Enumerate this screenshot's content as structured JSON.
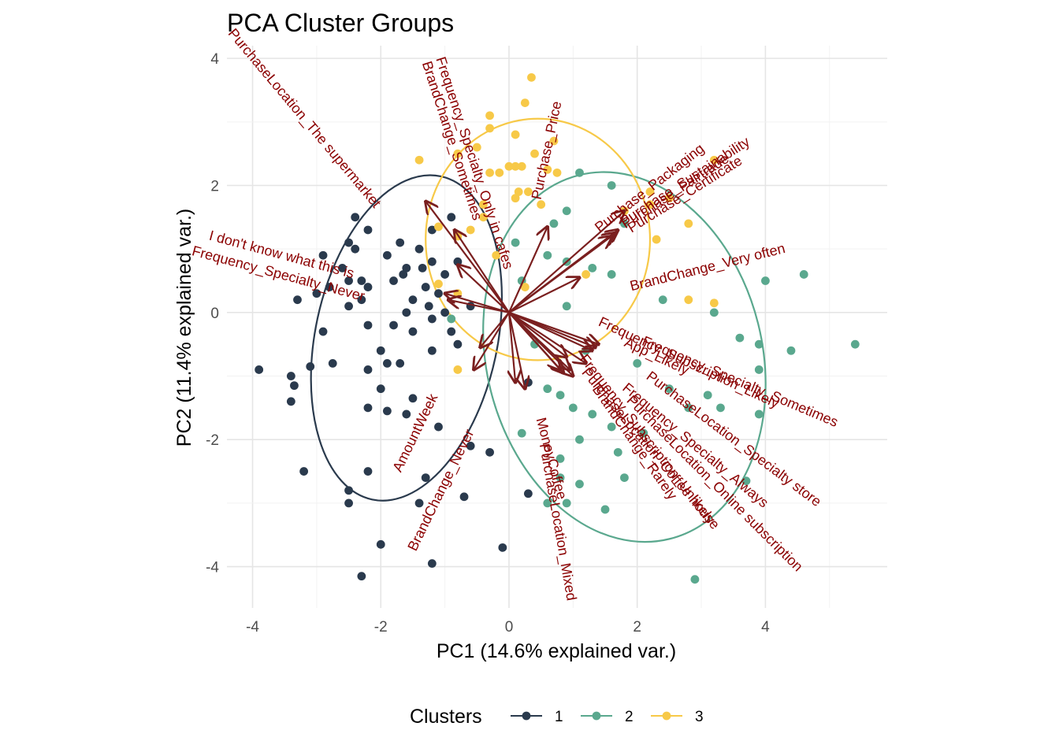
{
  "chart_data": {
    "type": "scatter",
    "title": "PCA Cluster Groups",
    "xlabel": "PC1 (14.6% explained var.)",
    "ylabel": "PC2 (11.4% explained var.)",
    "xlim": [
      -4.4,
      5.9
    ],
    "ylim": [
      -4.65,
      4.2
    ],
    "x_ticks": [
      -4,
      -2,
      0,
      2,
      4
    ],
    "y_ticks": [
      -4,
      -2,
      0,
      2,
      4
    ],
    "x_tick_labels": [
      "-4",
      "-2",
      "0",
      "2",
      "4"
    ],
    "y_tick_labels": [
      "-4",
      "-2",
      "0",
      "2",
      "4"
    ],
    "grid": true,
    "legend": {
      "title": "Clusters",
      "position": "bottom",
      "entries": [
        {
          "label": "1",
          "color": "#2a3a4d"
        },
        {
          "label": "2",
          "color": "#5aa88e"
        },
        {
          "label": "3",
          "color": "#f7c948"
        }
      ]
    },
    "series": [
      {
        "name": "1",
        "color": "#2a3a4d",
        "ellipse": {
          "center": [
            -1.6,
            -0.4
          ],
          "rx": 1.42,
          "ry": 2.6,
          "angle": 12
        },
        "points": [
          [
            -2.4,
            1.5
          ],
          [
            -2.2,
            1.3
          ],
          [
            -2.5,
            1.1
          ],
          [
            -2.4,
            1.0
          ],
          [
            -1.7,
            1.1
          ],
          [
            -1.9,
            0.9
          ],
          [
            -1.4,
            1.0
          ],
          [
            -2.9,
            0.9
          ],
          [
            -2.6,
            0.7
          ],
          [
            -2.8,
            0.4
          ],
          [
            -2.5,
            0.5
          ],
          [
            -2.3,
            0.5
          ],
          [
            -2.2,
            0.4
          ],
          [
            -1.8,
            0.5
          ],
          [
            -1.65,
            0.6
          ],
          [
            -1.6,
            0.7
          ],
          [
            -1.35,
            0.7
          ],
          [
            -1.2,
            0.8
          ],
          [
            -1.0,
            0.6
          ],
          [
            -1.1,
            0.3
          ],
          [
            -1.3,
            0.4
          ],
          [
            -3.3,
            0.2
          ],
          [
            -3.0,
            0.3
          ],
          [
            -2.5,
            0.1
          ],
          [
            -2.3,
            0.2
          ],
          [
            -2.2,
            -0.2
          ],
          [
            -1.8,
            -0.2
          ],
          [
            -1.5,
            0.2
          ],
          [
            -1.6,
            0.0
          ],
          [
            -1.25,
            0.1
          ],
          [
            -1.2,
            -0.1
          ],
          [
            -1.0,
            0.0
          ],
          [
            -2.9,
            -0.3
          ],
          [
            -2.0,
            -0.6
          ],
          [
            -1.9,
            -0.8
          ],
          [
            -1.7,
            -0.8
          ],
          [
            -1.2,
            -0.6
          ],
          [
            -0.8,
            -0.5
          ],
          [
            -3.9,
            -0.9
          ],
          [
            -3.4,
            -1.0
          ],
          [
            -3.35,
            -1.15
          ],
          [
            -3.1,
            -0.85
          ],
          [
            -2.75,
            -0.8
          ],
          [
            -2.2,
            -0.9
          ],
          [
            -2.0,
            -1.2
          ],
          [
            -1.6,
            -1.6
          ],
          [
            -1.5,
            -1.35
          ],
          [
            -3.4,
            -1.4
          ],
          [
            -2.2,
            -1.5
          ],
          [
            -1.9,
            -1.55
          ],
          [
            -1.1,
            -1.8
          ],
          [
            -0.6,
            -2.1
          ],
          [
            -0.3,
            -2.2
          ],
          [
            -3.2,
            -2.5
          ],
          [
            -2.2,
            -2.5
          ],
          [
            -1.3,
            -2.6
          ],
          [
            -2.5,
            -2.8
          ],
          [
            -2.5,
            -3.0
          ],
          [
            -1.4,
            -3.0
          ],
          [
            -0.7,
            -2.9
          ],
          [
            -2.0,
            -3.65
          ],
          [
            -1.2,
            -3.95
          ],
          [
            -0.1,
            -3.7
          ],
          [
            -2.3,
            -4.15
          ],
          [
            0.3,
            -1.1
          ],
          [
            -0.6,
            0.1
          ],
          [
            -0.8,
            0.8
          ],
          [
            -1.2,
            1.3
          ],
          [
            -0.9,
            1.5
          ],
          [
            0.3,
            -2.85
          ],
          [
            -1.5,
            -0.3
          ],
          [
            -0.9,
            -0.3
          ]
        ]
      },
      {
        "name": "2",
        "color": "#5aa88e",
        "ellipse": {
          "center": [
            1.8,
            -0.7
          ],
          "rx": 2.15,
          "ry": 2.95,
          "angle": -14
        },
        "points": [
          [
            1.1,
            2.2
          ],
          [
            1.6,
            2.0
          ],
          [
            0.9,
            1.6
          ],
          [
            0.7,
            1.4
          ],
          [
            1.8,
            1.4
          ],
          [
            0.1,
            1.1
          ],
          [
            0.6,
            0.9
          ],
          [
            0.9,
            0.8
          ],
          [
            1.3,
            0.7
          ],
          [
            0.2,
            0.5
          ],
          [
            1.6,
            0.6
          ],
          [
            4.0,
            0.5
          ],
          [
            4.6,
            0.6
          ],
          [
            2.4,
            0.2
          ],
          [
            3.2,
            0.0
          ],
          [
            3.6,
            -0.4
          ],
          [
            3.9,
            -0.5
          ],
          [
            4.4,
            -0.6
          ],
          [
            5.4,
            -0.5
          ],
          [
            3.9,
            -0.9
          ],
          [
            2.5,
            -1.2
          ],
          [
            3.1,
            -1.3
          ],
          [
            2.8,
            -1.5
          ],
          [
            3.3,
            -1.5
          ],
          [
            3.9,
            -1.6
          ],
          [
            0.6,
            -1.2
          ],
          [
            1.0,
            -1.5
          ],
          [
            1.3,
            -1.6
          ],
          [
            1.6,
            -1.8
          ],
          [
            2.1,
            -1.9
          ],
          [
            1.1,
            -2.0
          ],
          [
            0.8,
            -2.3
          ],
          [
            1.7,
            -2.2
          ],
          [
            0.2,
            -1.9
          ],
          [
            0.8,
            -2.6
          ],
          [
            1.8,
            -2.6
          ],
          [
            1.1,
            -2.7
          ],
          [
            3.7,
            -2.65
          ],
          [
            0.6,
            -3.0
          ],
          [
            0.9,
            -3.0
          ],
          [
            1.5,
            -3.1
          ],
          [
            2.9,
            -4.2
          ],
          [
            -0.9,
            -0.1
          ],
          [
            0.4,
            -0.5
          ],
          [
            0.9,
            0.1
          ],
          [
            1.2,
            -0.6
          ],
          [
            0.8,
            -1.3
          ],
          [
            2.0,
            -0.8
          ]
        ]
      },
      {
        "name": "3",
        "color": "#f7c948",
        "ellipse": {
          "center": [
            0.45,
            1.15
          ],
          "rx": 1.75,
          "ry": 1.9,
          "angle": 0
        },
        "points": [
          [
            0.35,
            3.7
          ],
          [
            0.25,
            3.3
          ],
          [
            -0.3,
            3.1
          ],
          [
            -0.3,
            2.9
          ],
          [
            0.1,
            2.8
          ],
          [
            0.7,
            2.7
          ],
          [
            -0.5,
            2.6
          ],
          [
            -0.8,
            2.5
          ],
          [
            0.4,
            2.5
          ],
          [
            -1.4,
            2.4
          ],
          [
            0.0,
            2.3
          ],
          [
            0.1,
            2.3
          ],
          [
            0.2,
            2.3
          ],
          [
            0.6,
            2.25
          ],
          [
            0.75,
            2.2
          ],
          [
            -0.15,
            2.2
          ],
          [
            -0.3,
            2.2
          ],
          [
            0.3,
            1.9
          ],
          [
            0.15,
            1.9
          ],
          [
            0.1,
            1.8
          ],
          [
            0.5,
            1.7
          ],
          [
            -0.4,
            1.7
          ],
          [
            -0.4,
            1.5
          ],
          [
            -0.6,
            1.3
          ],
          [
            -0.8,
            1.2
          ],
          [
            1.8,
            1.6
          ],
          [
            2.2,
            1.9
          ],
          [
            2.5,
            1.8
          ],
          [
            2.2,
            1.7
          ],
          [
            2.8,
            1.4
          ],
          [
            3.2,
            2.4
          ],
          [
            2.3,
            1.15
          ],
          [
            -0.2,
            0.9
          ],
          [
            0.25,
            0.4
          ],
          [
            1.2,
            0.6
          ],
          [
            2.8,
            0.2
          ],
          [
            3.2,
            0.15
          ],
          [
            -0.8,
            0.3
          ],
          [
            -1.1,
            0.45
          ],
          [
            -0.8,
            -0.9
          ],
          [
            -1.1,
            1.35
          ]
        ]
      }
    ],
    "loadings": [
      {
        "label": "Purchase_Packaging",
        "end": [
          1.8,
          1.6
        ],
        "label_pos": [
          2.2,
          1.95
        ],
        "angle": -38
      },
      {
        "label": "Purchase_Fairtrade",
        "end": [
          1.7,
          1.3
        ],
        "label_pos": [
          2.6,
          1.9
        ],
        "angle": -33
      },
      {
        "label": "Purchase_Sustainability",
        "end": [
          1.65,
          1.25
        ],
        "label_pos": [
          2.75,
          2.05
        ],
        "angle": -33
      },
      {
        "label": "Purchase_Certificate",
        "end": [
          1.6,
          1.2
        ],
        "label_pos": [
          2.75,
          1.85
        ],
        "angle": -32
      },
      {
        "label": "Purchase_Price",
        "end": [
          0.6,
          1.35
        ],
        "label_pos": [
          0.6,
          2.55
        ],
        "angle": -78
      },
      {
        "label": "BrandChange_Very often",
        "end": [
          1.1,
          0.55
        ],
        "label_pos": [
          3.1,
          0.7
        ],
        "angle": -14
      },
      {
        "label": "BrandChange_Sometimes",
        "end": [
          -1.3,
          1.75
        ],
        "label_pos": [
          -0.9,
          2.7
        ],
        "angle": 72
      },
      {
        "label": "Frequency_Specialty_Only in cafes",
        "end": [
          -0.85,
          1.3
        ],
        "label_pos": [
          -0.55,
          2.35
        ],
        "angle": 72
      },
      {
        "label": "PurchaseLocation_The supermarket",
        "end": [
          -0.8,
          0.75
        ],
        "label_pos": [
          -3.2,
          3.05
        ],
        "angle": 50
      },
      {
        "label": "I don't know what this is",
        "end": [
          -1.0,
          0.3
        ],
        "label_pos": [
          -3.55,
          0.9
        ],
        "angle": 15
      },
      {
        "label": "Frequency_Specialty_Never",
        "end": [
          -0.95,
          0.2
        ],
        "label_pos": [
          -3.6,
          0.6
        ],
        "angle": 15
      },
      {
        "label": "AmountWeek",
        "end": [
          -0.55,
          -0.9
        ],
        "label_pos": [
          -1.45,
          -1.9
        ],
        "angle": -64
      },
      {
        "label": "BrandChange_Never",
        "end": [
          -0.45,
          -0.55
        ],
        "label_pos": [
          -1.05,
          -2.8
        ],
        "angle": -64
      },
      {
        "label": "MoneyCoffee",
        "end": [
          0.1,
          -1.1
        ],
        "label_pos": [
          0.65,
          -2.3
        ],
        "angle": 75
      },
      {
        "label": "PurchaseLocation_Mixed",
        "end": [
          0.25,
          -1.2
        ],
        "label_pos": [
          0.75,
          -3.3
        ],
        "angle": 80
      },
      {
        "label": "Frequency_Subscription_Likely",
        "end": [
          1.4,
          -0.5
        ],
        "label_pos": [
          2.8,
          -0.8
        ],
        "angle": 25
      },
      {
        "label": "App_Likely",
        "end": [
          1.3,
          -0.6
        ],
        "label_pos": [
          2.3,
          -0.7
        ],
        "angle": 25
      },
      {
        "label": "Frequency_Specialty_Sometimes",
        "end": [
          1.35,
          -0.55
        ],
        "label_pos": [
          3.6,
          -1.1
        ],
        "angle": 23
      },
      {
        "label": "PurchaseLocation_Specialty store",
        "end": [
          1.2,
          -0.8
        ],
        "label_pos": [
          3.5,
          -2.0
        ],
        "angle": 37
      },
      {
        "label": "Frequency_Specialty_Always",
        "end": [
          0.9,
          -0.7
        ],
        "label_pos": [
          2.9,
          -2.1
        ],
        "angle": 40
      },
      {
        "label": "BrandChange_Rarely",
        "end": [
          0.8,
          -0.9
        ],
        "label_pos": [
          1.95,
          -2.05
        ],
        "angle": 55
      },
      {
        "label": "Frequency_Subscription_Unlikely",
        "end": [
          0.85,
          -0.95
        ],
        "label_pos": [
          2.15,
          -2.0
        ],
        "angle": 52
      },
      {
        "label": "PurchaseLocation_Coffee house",
        "end": [
          0.95,
          -0.9
        ],
        "label_pos": [
          2.2,
          -2.15
        ],
        "angle": 50
      },
      {
        "label": "PurchaseLocation_Online subscription",
        "end": [
          1.0,
          -1.0
        ],
        "label_pos": [
          3.2,
          -2.7
        ],
        "angle": 45
      }
    ]
  }
}
